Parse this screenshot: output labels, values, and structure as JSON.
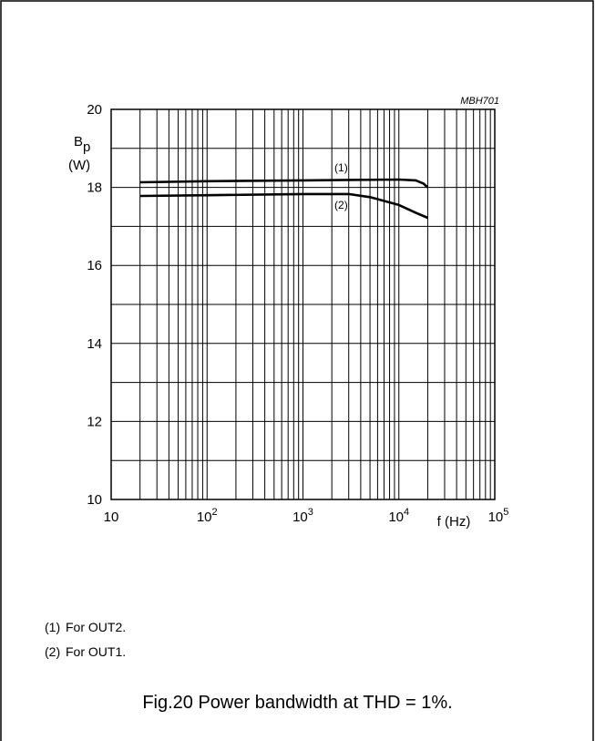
{
  "figure": {
    "caption": "Fig.20  Power bandwidth at THD = 1%.",
    "code": "MBH701",
    "notes": [
      {
        "num": "(1)",
        "text": "For OUT2."
      },
      {
        "num": "(2)",
        "text": "For OUT1."
      }
    ]
  },
  "chart_data": {
    "type": "line",
    "title": "",
    "ylabel_main": "B",
    "ylabel_sub": "p",
    "yunit": "(W)",
    "xlabel": "f (Hz)",
    "xscale": "log",
    "xlim": [
      10,
      100000
    ],
    "ylim": [
      10,
      20
    ],
    "grid": true,
    "y_ticks": [
      "10",
      "12",
      "14",
      "16",
      "18",
      "20"
    ],
    "x_ticks": [
      {
        "value": 10,
        "base": "10",
        "exp": ""
      },
      {
        "value": 100,
        "base": "10",
        "exp": "2"
      },
      {
        "value": 1000,
        "base": "10",
        "exp": "3"
      },
      {
        "value": 10000,
        "base": "10",
        "exp": "4"
      },
      {
        "value": 100000,
        "base": "10",
        "exp": "5"
      }
    ],
    "series": [
      {
        "name": "(1)",
        "x": [
          20,
          100,
          1000,
          10000,
          15000,
          18000,
          20000
        ],
        "y": [
          18.13,
          18.16,
          18.18,
          18.2,
          18.18,
          18.1,
          18.0
        ]
      },
      {
        "name": "(2)",
        "x": [
          20,
          100,
          1000,
          3000,
          5000,
          10000,
          15000,
          20000
        ],
        "y": [
          17.78,
          17.8,
          17.83,
          17.83,
          17.75,
          17.55,
          17.35,
          17.22
        ]
      }
    ]
  }
}
